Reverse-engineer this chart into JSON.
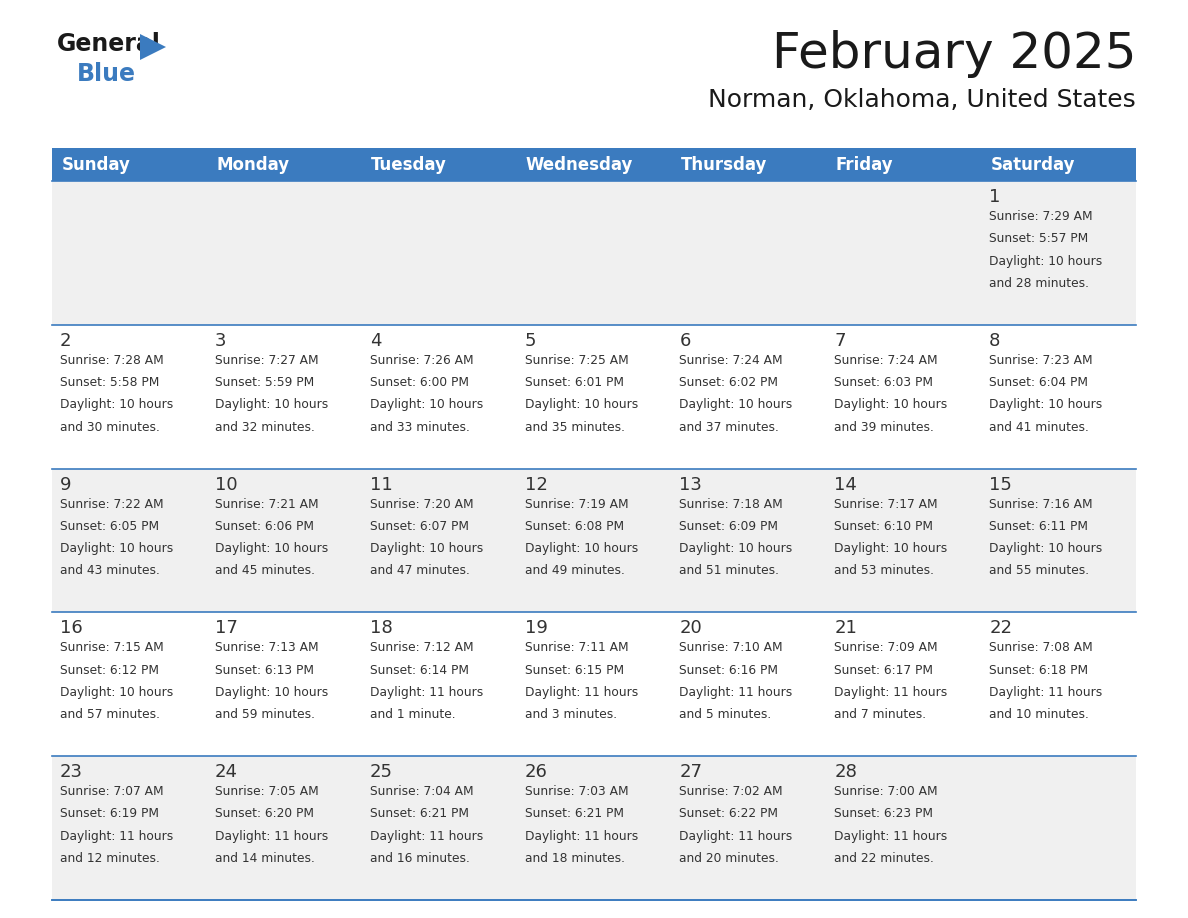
{
  "title": "February 2025",
  "subtitle": "Norman, Oklahoma, United States",
  "header_bg": "#3b7bbf",
  "header_text": "#ffffff",
  "row_bg_alt": "#f0f0f0",
  "row_bg_white": "#ffffff",
  "separator_color": "#3b7bbf",
  "text_color": "#333333",
  "days_of_week": [
    "Sunday",
    "Monday",
    "Tuesday",
    "Wednesday",
    "Thursday",
    "Friday",
    "Saturday"
  ],
  "calendar": [
    [
      null,
      null,
      null,
      null,
      null,
      null,
      {
        "day": 1,
        "sunrise": "7:29 AM",
        "sunset": "5:57 PM",
        "daylight": "10 hours and 28 minutes."
      }
    ],
    [
      {
        "day": 2,
        "sunrise": "7:28 AM",
        "sunset": "5:58 PM",
        "daylight": "10 hours and 30 minutes."
      },
      {
        "day": 3,
        "sunrise": "7:27 AM",
        "sunset": "5:59 PM",
        "daylight": "10 hours and 32 minutes."
      },
      {
        "day": 4,
        "sunrise": "7:26 AM",
        "sunset": "6:00 PM",
        "daylight": "10 hours and 33 minutes."
      },
      {
        "day": 5,
        "sunrise": "7:25 AM",
        "sunset": "6:01 PM",
        "daylight": "10 hours and 35 minutes."
      },
      {
        "day": 6,
        "sunrise": "7:24 AM",
        "sunset": "6:02 PM",
        "daylight": "10 hours and 37 minutes."
      },
      {
        "day": 7,
        "sunrise": "7:24 AM",
        "sunset": "6:03 PM",
        "daylight": "10 hours and 39 minutes."
      },
      {
        "day": 8,
        "sunrise": "7:23 AM",
        "sunset": "6:04 PM",
        "daylight": "10 hours and 41 minutes."
      }
    ],
    [
      {
        "day": 9,
        "sunrise": "7:22 AM",
        "sunset": "6:05 PM",
        "daylight": "10 hours and 43 minutes."
      },
      {
        "day": 10,
        "sunrise": "7:21 AM",
        "sunset": "6:06 PM",
        "daylight": "10 hours and 45 minutes."
      },
      {
        "day": 11,
        "sunrise": "7:20 AM",
        "sunset": "6:07 PM",
        "daylight": "10 hours and 47 minutes."
      },
      {
        "day": 12,
        "sunrise": "7:19 AM",
        "sunset": "6:08 PM",
        "daylight": "10 hours and 49 minutes."
      },
      {
        "day": 13,
        "sunrise": "7:18 AM",
        "sunset": "6:09 PM",
        "daylight": "10 hours and 51 minutes."
      },
      {
        "day": 14,
        "sunrise": "7:17 AM",
        "sunset": "6:10 PM",
        "daylight": "10 hours and 53 minutes."
      },
      {
        "day": 15,
        "sunrise": "7:16 AM",
        "sunset": "6:11 PM",
        "daylight": "10 hours and 55 minutes."
      }
    ],
    [
      {
        "day": 16,
        "sunrise": "7:15 AM",
        "sunset": "6:12 PM",
        "daylight": "10 hours and 57 minutes."
      },
      {
        "day": 17,
        "sunrise": "7:13 AM",
        "sunset": "6:13 PM",
        "daylight": "10 hours and 59 minutes."
      },
      {
        "day": 18,
        "sunrise": "7:12 AM",
        "sunset": "6:14 PM",
        "daylight": "11 hours and 1 minute."
      },
      {
        "day": 19,
        "sunrise": "7:11 AM",
        "sunset": "6:15 PM",
        "daylight": "11 hours and 3 minutes."
      },
      {
        "day": 20,
        "sunrise": "7:10 AM",
        "sunset": "6:16 PM",
        "daylight": "11 hours and 5 minutes."
      },
      {
        "day": 21,
        "sunrise": "7:09 AM",
        "sunset": "6:17 PM",
        "daylight": "11 hours and 7 minutes."
      },
      {
        "day": 22,
        "sunrise": "7:08 AM",
        "sunset": "6:18 PM",
        "daylight": "11 hours and 10 minutes."
      }
    ],
    [
      {
        "day": 23,
        "sunrise": "7:07 AM",
        "sunset": "6:19 PM",
        "daylight": "11 hours and 12 minutes."
      },
      {
        "day": 24,
        "sunrise": "7:05 AM",
        "sunset": "6:20 PM",
        "daylight": "11 hours and 14 minutes."
      },
      {
        "day": 25,
        "sunrise": "7:04 AM",
        "sunset": "6:21 PM",
        "daylight": "11 hours and 16 minutes."
      },
      {
        "day": 26,
        "sunrise": "7:03 AM",
        "sunset": "6:21 PM",
        "daylight": "11 hours and 18 minutes."
      },
      {
        "day": 27,
        "sunrise": "7:02 AM",
        "sunset": "6:22 PM",
        "daylight": "11 hours and 20 minutes."
      },
      {
        "day": 28,
        "sunrise": "7:00 AM",
        "sunset": "6:23 PM",
        "daylight": "11 hours and 22 minutes."
      },
      null
    ]
  ],
  "logo_general_color": "#1a1a1a",
  "logo_blue_color": "#3b7bbf",
  "logo_triangle_color": "#3b7bbf"
}
